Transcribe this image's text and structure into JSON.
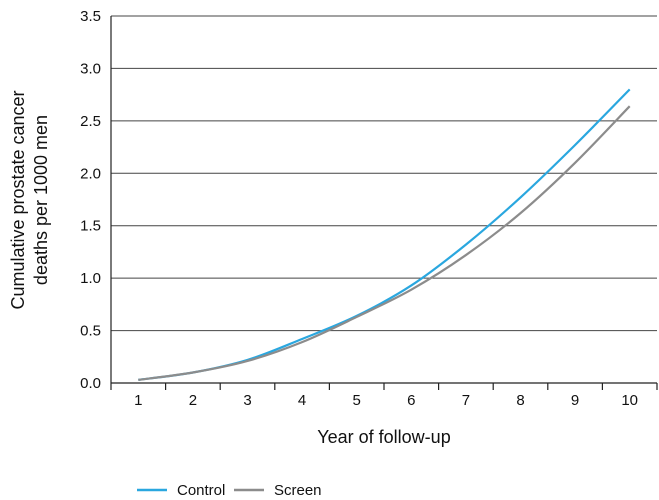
{
  "chart_data": {
    "type": "line",
    "title": "",
    "xlabel": "Year of follow-up",
    "ylabel_lines": [
      "Cumulative prostate cancer",
      "deaths per 1000 men"
    ],
    "x": [
      1,
      2,
      3,
      4,
      5,
      6,
      7,
      8,
      9,
      10
    ],
    "x_tick_labels": [
      "1",
      "2",
      "3",
      "4",
      "5",
      "6",
      "7",
      "8",
      "9",
      "10"
    ],
    "ylim": [
      0,
      3.5
    ],
    "y_ticks": [
      0.0,
      0.5,
      1.0,
      1.5,
      2.0,
      2.5,
      3.0,
      3.5
    ],
    "y_tick_labels": [
      "0.0",
      "0.5",
      "1.0",
      "1.5",
      "2.0",
      "2.5",
      "3.0",
      "3.5"
    ],
    "grid": "horizontal",
    "legend_position": "bottom-center",
    "series": [
      {
        "name": "Control",
        "color": "#2aa7df",
        "values": [
          0.03,
          0.1,
          0.22,
          0.42,
          0.64,
          0.93,
          1.32,
          1.77,
          2.27,
          2.8
        ]
      },
      {
        "name": "Screen",
        "color": "#8c8c8c",
        "values": [
          0.03,
          0.1,
          0.21,
          0.39,
          0.63,
          0.89,
          1.22,
          1.62,
          2.1,
          2.64
        ]
      }
    ]
  }
}
